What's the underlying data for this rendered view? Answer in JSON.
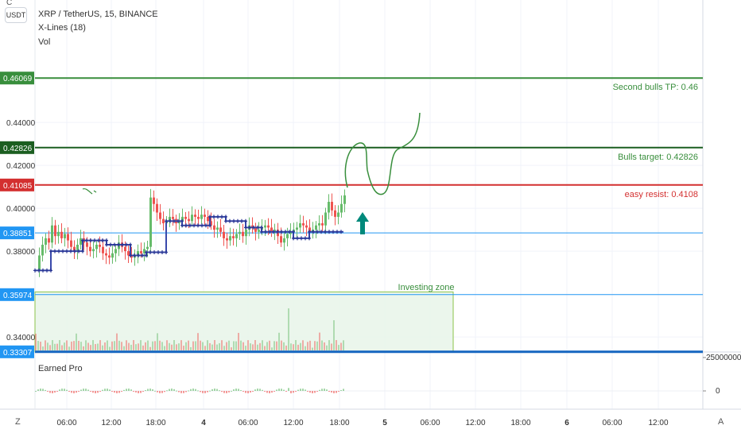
{
  "header": {
    "symbol": "XRP / TetherUS, 15, BINANCE",
    "indicator1": "X-Lines (18)",
    "indicator2": "Vol"
  },
  "currency_button": "USDT",
  "corner_top_left": "C",
  "corner_bottom_left": "Z",
  "corner_bottom_right": "A",
  "colors": {
    "green_line": "#388e3c",
    "dark_green_line": "#1b5e20",
    "red_line": "#d32f2f",
    "blue_line": "#2196f3",
    "zone_fill": "#e8f5e9",
    "arrow": "#00897b"
  },
  "price_badges": [
    {
      "value": "0.46069",
      "color": "#388e3c"
    },
    {
      "value": "0.42826",
      "color": "#1b5e20"
    },
    {
      "value": "0.41085",
      "color": "#d32f2f"
    },
    {
      "value": "0.38851",
      "color": "#2196f3"
    },
    {
      "value": "0.35974",
      "color": "#2196f3"
    },
    {
      "value": "0.33307",
      "color": "#2196f3"
    }
  ],
  "annotations": [
    {
      "text": "Second bulls TP: 0.46",
      "color": "#388e3c",
      "price": 0.46069
    },
    {
      "text": "Bulls target: 0.42826",
      "color": "#388e3c",
      "price": 0.42826
    },
    {
      "text": "easy resist: 0.4108",
      "color": "#d32f2f",
      "price": 0.41085
    },
    {
      "text": "Investing zone",
      "color": "#388e3c",
      "price": 0.36
    }
  ],
  "subpanel": {
    "title": "Earned Pro",
    "ticks": [
      "25000000",
      "0"
    ]
  },
  "chart_data": {
    "type": "line",
    "title": "XRP / TetherUS, 15, BINANCE",
    "ylim": [
      0.333,
      0.47
    ],
    "y_ticks": [
      "0.44000",
      "0.42000",
      "0.40000",
      "0.38000",
      "0.34000"
    ],
    "x_ticks": [
      "06:00",
      "12:00",
      "18:00",
      "4",
      "06:00",
      "12:00",
      "18:00",
      "5",
      "06:00",
      "12:00",
      "18:00",
      "6",
      "06:00",
      "12:00"
    ],
    "horizontal_levels": [
      {
        "price": 0.46069,
        "label": "Second bulls TP: 0.46"
      },
      {
        "price": 0.42826,
        "label": "Bulls target: 0.42826"
      },
      {
        "price": 0.41085,
        "label": "easy resist: 0.4108"
      },
      {
        "price": 0.38851,
        "label": ""
      },
      {
        "price": 0.35974,
        "label": ""
      },
      {
        "price": 0.33307,
        "label": ""
      }
    ],
    "investing_zone": {
      "label": "Investing zone",
      "top": 0.361,
      "bottom": 0.333
    },
    "series": [
      {
        "x": [
          0,
          4,
          8,
          12,
          16,
          20,
          24,
          28,
          32,
          36,
          40,
          44,
          48,
          52,
          56,
          60,
          64,
          68,
          72,
          76,
          80,
          84,
          88,
          92,
          96,
          100,
          104,
          108,
          112,
          116,
          120,
          124,
          128,
          132,
          136,
          140,
          144,
          148,
          152,
          156,
          160,
          164,
          168,
          172,
          176,
          180,
          184,
          188,
          192,
          196,
          200,
          204,
          208,
          212,
          216,
          220,
          224,
          228,
          232,
          236,
          240,
          244,
          248,
          252,
          256,
          260,
          264,
          268,
          272,
          276,
          280,
          284,
          288,
          292,
          296,
          300,
          304,
          308,
          312,
          316,
          320,
          324,
          328,
          332,
          336,
          340,
          344,
          348,
          352,
          356,
          360,
          364,
          368,
          372,
          376,
          380,
          384,
          388
        ],
        "values": [
          0.371,
          0.378,
          0.383,
          0.386,
          0.384,
          0.392,
          0.387,
          0.389,
          0.386,
          0.388,
          0.385,
          0.382,
          0.38,
          0.383,
          0.386,
          0.384,
          0.382,
          0.38,
          0.381,
          0.383,
          0.382,
          0.379,
          0.378,
          0.377,
          0.379,
          0.381,
          0.384,
          0.382,
          0.38,
          0.378,
          0.377,
          0.378,
          0.38,
          0.379,
          0.381,
          0.382,
          0.405,
          0.402,
          0.398,
          0.395,
          0.393,
          0.394,
          0.396,
          0.395,
          0.393,
          0.394,
          0.396,
          0.395,
          0.394,
          0.397,
          0.396,
          0.395,
          0.397,
          0.396,
          0.394,
          0.392,
          0.39,
          0.391,
          0.389,
          0.386,
          0.385,
          0.387,
          0.386,
          0.388,
          0.389,
          0.387,
          0.39,
          0.392,
          0.391,
          0.389,
          0.39,
          0.391,
          0.392,
          0.391,
          0.389,
          0.39,
          0.387,
          0.384,
          0.386,
          0.388,
          0.389,
          0.39,
          0.391,
          0.393,
          0.392,
          0.391,
          0.389,
          0.39,
          0.392,
          0.393,
          0.392,
          0.398,
          0.403,
          0.399,
          0.396,
          0.398,
          0.402,
          0.406
        ]
      },
      {
        "name": "X-Lines (18)",
        "x": [
          0,
          20,
          20,
          60,
          60,
          90,
          90,
          120,
          120,
          140,
          140,
          165,
          165,
          185,
          185,
          220,
          220,
          240,
          240,
          265,
          265,
          285,
          285,
          325,
          325,
          345,
          345,
          388
        ],
        "values": [
          0.371,
          0.371,
          0.38,
          0.38,
          0.385,
          0.385,
          0.383,
          0.383,
          0.378,
          0.378,
          0.3795,
          0.3795,
          0.394,
          0.394,
          0.392,
          0.392,
          0.396,
          0.396,
          0.394,
          0.394,
          0.391,
          0.391,
          0.389,
          0.389,
          0.386,
          0.386,
          0.389,
          0.389
        ]
      }
    ]
  }
}
